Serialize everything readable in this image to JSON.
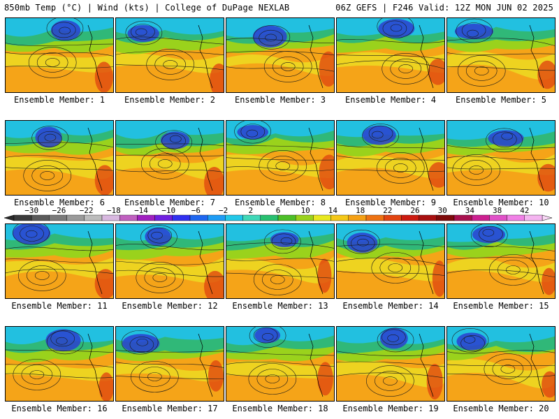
{
  "header": {
    "left": "850mb Temp (°C) | Wind (kts) | College of DuPage NEXLAB",
    "right": "06Z GEFS | F246 Valid: 12Z MON JUN 02 2025"
  },
  "panels": [
    {
      "label": "Ensemble Member: 1"
    },
    {
      "label": "Ensemble Member: 2"
    },
    {
      "label": "Ensemble Member: 3"
    },
    {
      "label": "Ensemble Member: 4"
    },
    {
      "label": "Ensemble Member: 5"
    },
    {
      "label": "Ensemble Member: 6"
    },
    {
      "label": "Ensemble Member: 7"
    },
    {
      "label": "Ensemble Member: 8"
    },
    {
      "label": "Ensemble Member: 9"
    },
    {
      "label": "Ensemble Member: 10"
    },
    {
      "label": "Ensemble Member: 11"
    },
    {
      "label": "Ensemble Member: 12"
    },
    {
      "label": "Ensemble Member: 13"
    },
    {
      "label": "Ensemble Member: 14"
    },
    {
      "label": "Ensemble Member: 15"
    },
    {
      "label": "Ensemble Member: 16"
    },
    {
      "label": "Ensemble Member: 17"
    },
    {
      "label": "Ensemble Member: 18"
    },
    {
      "label": "Ensemble Member: 19"
    },
    {
      "label": "Ensemble Member: 20"
    }
  ],
  "colorbar": {
    "ticks": [
      "−30",
      "−26",
      "−22",
      "−18",
      "−14",
      "−10",
      "−6",
      "−2",
      "2",
      "6",
      "10",
      "14",
      "18",
      "22",
      "26",
      "30",
      "34",
      "38",
      "42"
    ],
    "colors": [
      "#3a3a3a",
      "#5a5a5a",
      "#7a7a7a",
      "#9a9a9a",
      "#bcbcbc",
      "#d8b8e0",
      "#c060c0",
      "#a020c0",
      "#7020e0",
      "#3030f0",
      "#1e66f0",
      "#1e9cf5",
      "#22c8e8",
      "#40d8b8",
      "#28c070",
      "#4cbf28",
      "#9ad21c",
      "#e8e820",
      "#f5c818",
      "#f5a014",
      "#ee7212",
      "#e24410",
      "#cc1a10",
      "#a81010",
      "#7e0a0a",
      "#a8104e",
      "#cc2090",
      "#e050c8",
      "#f080e6",
      "#f4b4f0"
    ]
  },
  "palette": {
    "cold": "#2a3fcf",
    "cool": "#22c0e0",
    "mild": "#30b878",
    "warm_green": "#9ad21c",
    "yellow": "#ecdc22",
    "orange": "#f5a418",
    "hot": "#e04810",
    "contour": "#1a1a1a"
  }
}
